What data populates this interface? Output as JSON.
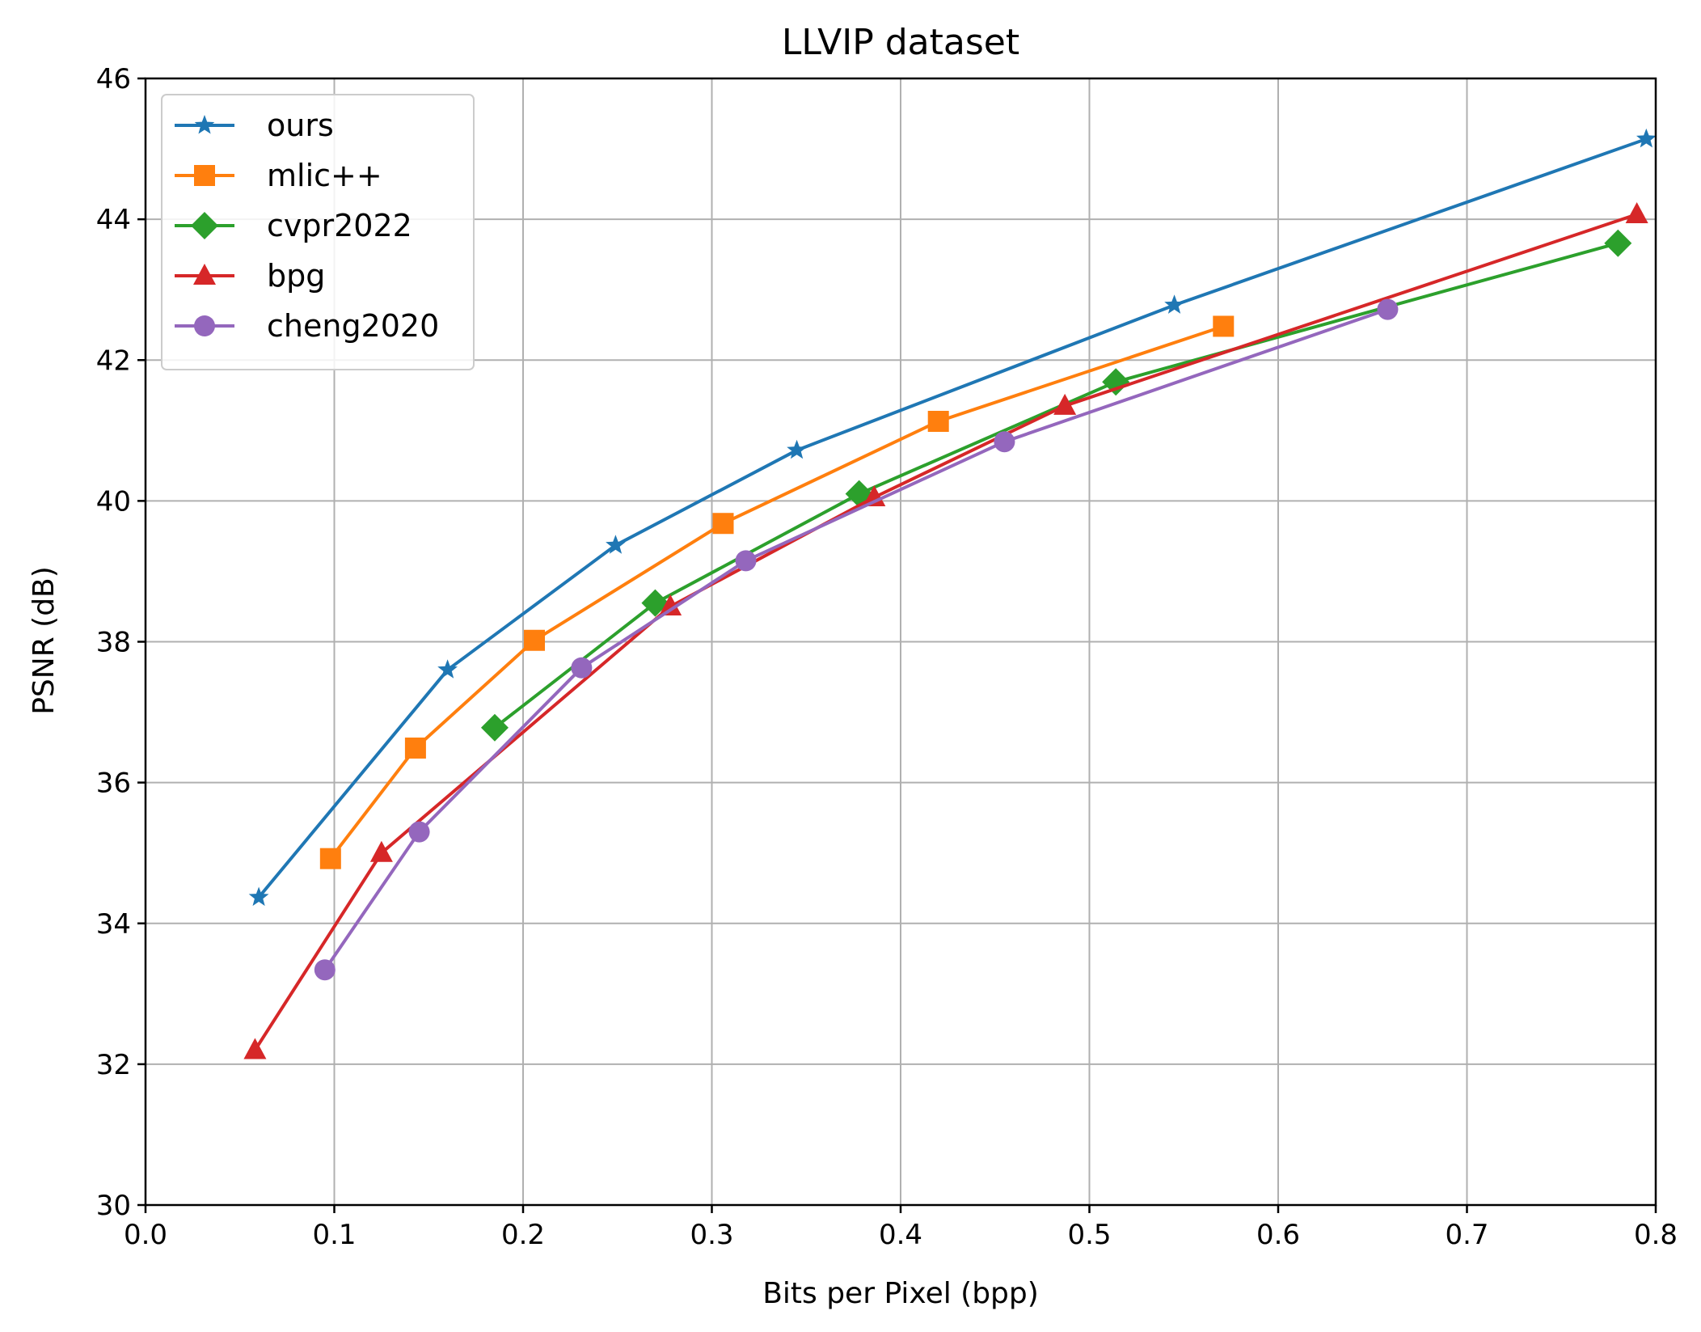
{
  "chart_data": {
    "type": "line",
    "title": "LLVIP dataset",
    "xlabel": "Bits per Pixel (bpp)",
    "ylabel": "PSNR (dB)",
    "xlim": [
      0.0,
      0.8
    ],
    "ylim": [
      30,
      46
    ],
    "x_ticks": [
      "0.0",
      "0.1",
      "0.2",
      "0.3",
      "0.4",
      "0.5",
      "0.6",
      "0.7",
      "0.8"
    ],
    "y_ticks": [
      "30",
      "32",
      "34",
      "36",
      "38",
      "40",
      "42",
      "44",
      "46"
    ],
    "grid": true,
    "legend_position": "top-left",
    "series": [
      {
        "name": "ours",
        "color": "#1f77b4",
        "marker": "star",
        "x": [
          0.06,
          0.16,
          0.249,
          0.345,
          0.545,
          0.795
        ],
        "y": [
          34.37,
          37.6,
          39.37,
          40.72,
          42.78,
          45.14
        ]
      },
      {
        "name": "mlic++",
        "color": "#ff7f0e",
        "marker": "square",
        "x": [
          0.098,
          0.143,
          0.206,
          0.306,
          0.42,
          0.571
        ],
        "y": [
          34.92,
          36.49,
          38.02,
          39.68,
          41.13,
          42.48
        ]
      },
      {
        "name": "cvpr2022",
        "color": "#2ca02c",
        "marker": "diamond",
        "x": [
          0.185,
          0.27,
          0.378,
          0.514,
          0.78
        ],
        "y": [
          36.78,
          38.55,
          40.1,
          41.69,
          43.66
        ]
      },
      {
        "name": "bpg",
        "color": "#d62728",
        "marker": "triangle",
        "x": [
          0.058,
          0.125,
          0.278,
          0.386,
          0.487,
          0.79
        ],
        "y": [
          32.2,
          35.0,
          38.5,
          40.05,
          41.35,
          44.07
        ]
      },
      {
        "name": "cheng2020",
        "color": "#9467bd",
        "marker": "circle",
        "x": [
          0.095,
          0.145,
          0.231,
          0.318,
          0.455,
          0.658
        ],
        "y": [
          33.34,
          35.3,
          37.63,
          39.15,
          40.84,
          42.72
        ]
      }
    ]
  }
}
